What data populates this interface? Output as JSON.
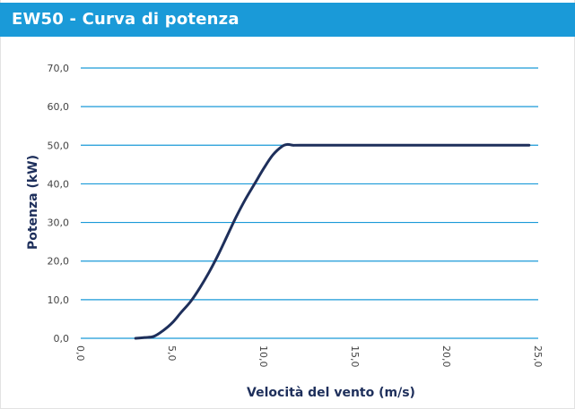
{
  "header": {
    "title": "EW50 - Curva di potenza"
  },
  "colors": {
    "header_bg": "#1a9ad8",
    "grid": "#1a9ad8",
    "line": "#1e2f5b"
  },
  "chart_data": {
    "type": "line",
    "title": "EW50 - Curva di potenza",
    "xlabel": "Velocità del vento (m/s)",
    "ylabel": "Potenza (kW)",
    "xlim": [
      0,
      25
    ],
    "ylim": [
      0,
      70
    ],
    "x_ticks": [
      "0,0",
      "5,0",
      "10,0",
      "15,0",
      "20,0",
      "25,0"
    ],
    "y_ticks": [
      "0,0",
      "10,0",
      "20,0",
      "30,0",
      "40,0",
      "50,0",
      "60,0",
      "70,0"
    ],
    "grid": "horizontal",
    "legend": "none",
    "series": [
      {
        "x": [
          3.0,
          3.5,
          4.0,
          4.5,
          5.0,
          5.5,
          6.0,
          6.5,
          7.0,
          7.5,
          8.0,
          8.5,
          9.0,
          9.5,
          10.0,
          10.5,
          11.0,
          11.3,
          11.6,
          12.0,
          15.0,
          20.0,
          24.5
        ],
        "y": [
          0.0,
          0.2,
          0.5,
          2.0,
          4.0,
          6.8,
          9.5,
          13.0,
          17.0,
          21.5,
          26.5,
          31.5,
          36.0,
          40.0,
          44.0,
          47.5,
          49.7,
          50.2,
          50.0,
          50.0,
          50.0,
          50.0,
          50.0
        ]
      }
    ]
  }
}
